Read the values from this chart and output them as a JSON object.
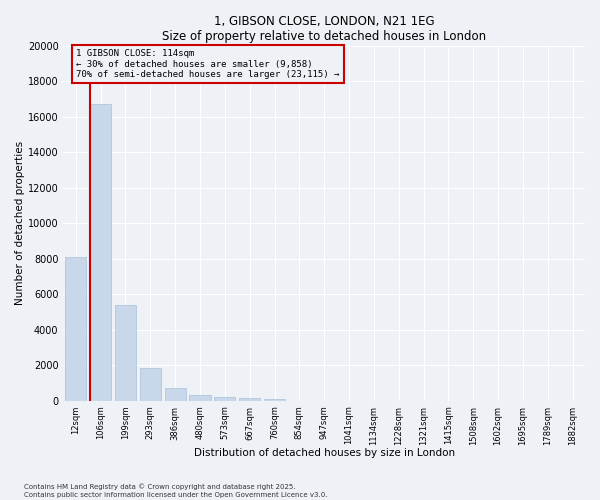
{
  "title": "1, GIBSON CLOSE, LONDON, N21 1EG",
  "subtitle": "Size of property relative to detached houses in London",
  "xlabel": "Distribution of detached houses by size in London",
  "ylabel": "Number of detached properties",
  "bar_color": "#c8d8ea",
  "bar_edge_color": "#a8c0d8",
  "categories": [
    "12sqm",
    "106sqm",
    "199sqm",
    "293sqm",
    "386sqm",
    "480sqm",
    "573sqm",
    "667sqm",
    "760sqm",
    "854sqm",
    "947sqm",
    "1041sqm",
    "1134sqm",
    "1228sqm",
    "1321sqm",
    "1415sqm",
    "1508sqm",
    "1602sqm",
    "1695sqm",
    "1789sqm",
    "1882sqm"
  ],
  "values": [
    8100,
    16700,
    5400,
    1850,
    700,
    300,
    200,
    150,
    100,
    0,
    0,
    0,
    0,
    0,
    0,
    0,
    0,
    0,
    0,
    0,
    0
  ],
  "ylim": [
    0,
    20000
  ],
  "yticks": [
    0,
    2000,
    4000,
    6000,
    8000,
    10000,
    12000,
    14000,
    16000,
    18000,
    20000
  ],
  "property_line_color": "#cc0000",
  "annotation_text": "1 GIBSON CLOSE: 114sqm\n← 30% of detached houses are smaller (9,858)\n70% of semi-detached houses are larger (23,115) →",
  "annotation_box_color": "#cc0000",
  "background_color": "#eef2f7",
  "grid_color": "#ffffff",
  "footer_line1": "Contains HM Land Registry data © Crown copyright and database right 2025.",
  "footer_line2": "Contains public sector information licensed under the Open Government Licence v3.0."
}
